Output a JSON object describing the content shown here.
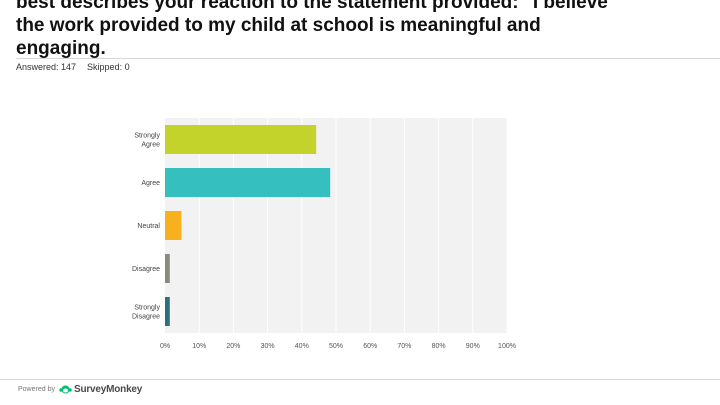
{
  "question": {
    "line1": "best describes your reaction to the statement provided: \"I believe",
    "line2": "the work provided to my child at school is meaningful and",
    "line3": "engaging."
  },
  "stats": {
    "answered": "Answered: 147",
    "skipped": "Skipped: 0"
  },
  "footer": {
    "powered_by": "Powered by",
    "brand": "SurveyMonkey"
  },
  "chart_data": {
    "type": "bar",
    "orientation": "horizontal",
    "categories": [
      "Strongly Agree",
      "Agree",
      "Neutral",
      "Disagree",
      "Strongly Disagree"
    ],
    "values": [
      44.2,
      48.3,
      4.8,
      1.4,
      1.4
    ],
    "colors": [
      "#c3d32c",
      "#35bfbf",
      "#f7b11e",
      "#8a8a7c",
      "#2f6f7a"
    ],
    "xticks": [
      "0%",
      "10%",
      "20%",
      "30%",
      "40%",
      "50%",
      "60%",
      "70%",
      "80%",
      "90%",
      "100%"
    ],
    "xlim": [
      0,
      100
    ],
    "grid": true,
    "title": "",
    "xlabel": "",
    "ylabel": ""
  }
}
